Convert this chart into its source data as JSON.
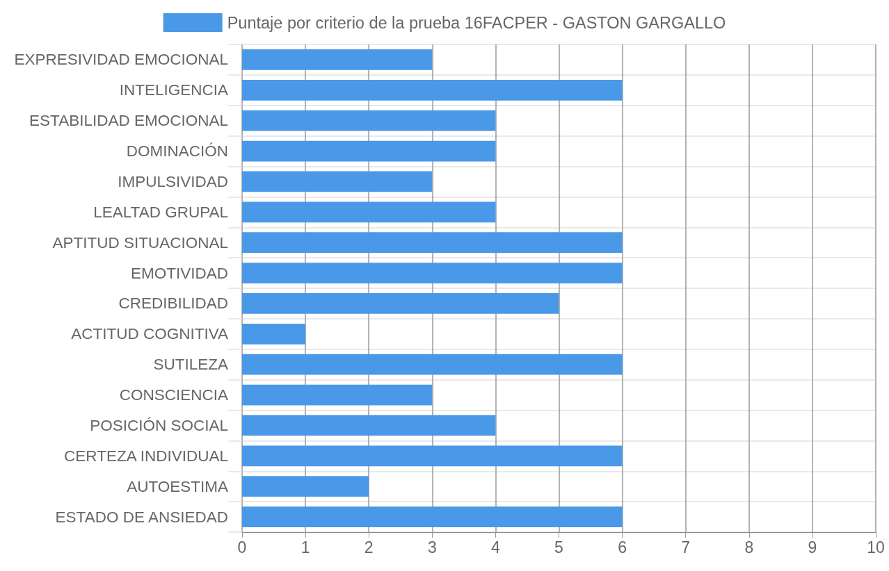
{
  "chart_data": {
    "type": "bar",
    "orientation": "horizontal",
    "categories": [
      "EXPRESIVIDAD EMOCIONAL",
      "INTELIGENCIA",
      "ESTABILIDAD EMOCIONAL",
      "DOMINACIÓN",
      "IMPULSIVIDAD",
      "LEALTAD GRUPAL",
      "APTITUD SITUACIONAL",
      "EMOTIVIDAD",
      "CREDIBILIDAD",
      "ACTITUD COGNITIVA",
      "SUTILEZA",
      "CONSCIENCIA",
      "POSICIÓN SOCIAL",
      "CERTEZA INDIVIDUAL",
      "AUTOESTIMA",
      "ESTADO DE ANSIEDAD"
    ],
    "series": [
      {
        "name": "Puntaje por criterio de la prueba 16FACPER - GASTON GARGALLO",
        "color": "#4a99e8",
        "values": [
          3,
          6,
          4,
          4,
          3,
          4,
          6,
          6,
          5,
          1,
          6,
          3,
          4,
          6,
          2,
          6
        ]
      }
    ],
    "xlim": [
      0,
      10
    ],
    "xticks": [
      0,
      1,
      2,
      3,
      4,
      5,
      6,
      7,
      8,
      9,
      10
    ],
    "grid": true,
    "legend": "top"
  }
}
